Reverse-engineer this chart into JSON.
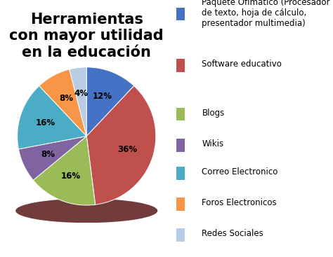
{
  "title": "Herramientas\ncon mayor utilidad\nen la educación",
  "labels": [
    "Paquete Ofimatico (Procesador\nde texto, hoja de cálculo,\npresentador multimedia)",
    "Software educativo",
    "",
    "Blogs",
    "",
    "Wikis",
    "",
    "Correo Electronico",
    "",
    "Foros Electronicos",
    "",
    "Redes Sociales"
  ],
  "pie_labels": [
    "Paquete Ofimatico (Procesador de texto, hoja de cálculo, presentador multimedia)",
    "Software educativo",
    "Blogs",
    "Wikis",
    "Correo Electronico",
    "Foros Electronicos",
    "Redes Sociales"
  ],
  "values": [
    12,
    36,
    16,
    8,
    16,
    8,
    4
  ],
  "colors": [
    "#4472C4",
    "#C0504D",
    "#9BBB59",
    "#8064A2",
    "#4BACC6",
    "#F79646",
    "#B8CCE4"
  ],
  "pct_labels": [
    "12%",
    "36%",
    "16%",
    "8%",
    "16%",
    "8%",
    "4%"
  ],
  "startangle": 90,
  "background_color": "#FFFFFF",
  "title_fontsize": 15,
  "legend_fontsize": 8.5,
  "shadow_color": "#6B2020"
}
